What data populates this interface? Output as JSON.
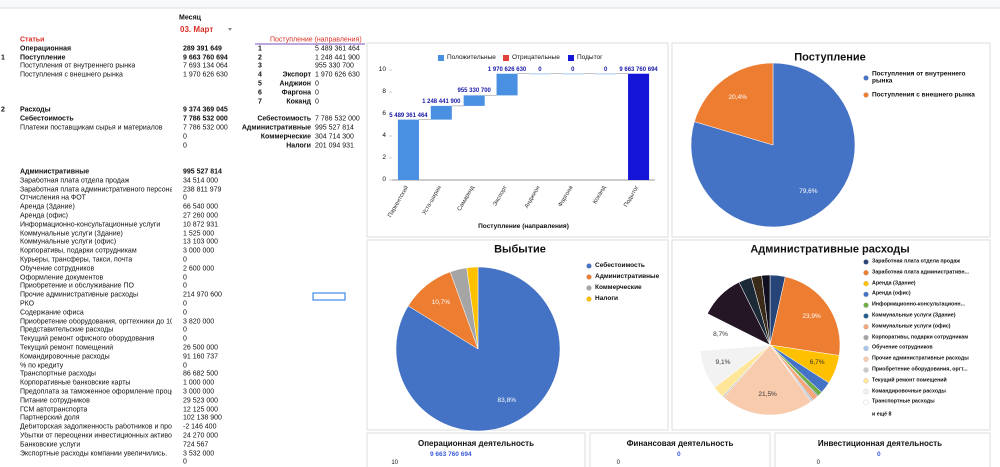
{
  "header": {
    "month_label": "Месяц",
    "month": "03. Март"
  },
  "left_table": {
    "header": "Статьи",
    "sections": [
      {
        "rows": [
          {
            "label": "Операционная",
            "value": "289 391 649",
            "bold": true
          },
          {
            "num": "1",
            "label": "Поступление",
            "value": "9 663 760 694",
            "bold": true
          },
          {
            "label": "Поступления от внутреннего рынка",
            "value": "7 693 134 064"
          },
          {
            "label": "Поступления с внешнего рынка",
            "value": "1 970 626 630"
          }
        ]
      },
      {
        "rows": [
          {
            "num": "2",
            "label": "Расходы",
            "value": "9 374 369 045",
            "bold": true
          },
          {
            "label": "Себестоимость",
            "value": "7 786 532 000",
            "bold": true
          },
          {
            "label": "Платежи поставщикам сырья и материалов",
            "value": "7 786 532 000"
          },
          {
            "value": "0"
          },
          {
            "value": "0"
          }
        ]
      },
      {
        "rows": [
          {
            "label": "Административные",
            "value": "995 527 814",
            "bold": true
          },
          {
            "label": "Заработная плата отдела продаж",
            "value": "34 514 000"
          },
          {
            "label": "Заработная плата административного персонал",
            "value": "238 811 979"
          },
          {
            "label": "Отчисления на ФОТ",
            "value": "0"
          },
          {
            "label": "Аренда (Здание)",
            "value": "66 540 000"
          },
          {
            "label": "Аренда (офис)",
            "value": "27 260 000"
          },
          {
            "label": "Информационно-консультационные услуги",
            "value": "10 872 931"
          },
          {
            "label": "Коммунальные услуги (Здание)",
            "value": "1 525 000"
          },
          {
            "label": "Коммунальные услуги (офис)",
            "value": "13 103 000"
          },
          {
            "label": "Корпоративы, подарки сотрудникам",
            "value": "3 000 000"
          },
          {
            "label": "Курьеры, трансферы, такси, почта",
            "value": "0"
          },
          {
            "label": "Обучение сотрудников",
            "value": "2 600 000"
          },
          {
            "label": "Оформление документов",
            "value": "0"
          },
          {
            "label": "Приобретение и обслуживание ПО",
            "value": "0"
          },
          {
            "label": "Прочие административные расходы",
            "value": "214 970 600"
          },
          {
            "label": "РКО",
            "value": "0"
          },
          {
            "label": "Содержание офиса",
            "value": "0"
          },
          {
            "label": "Приобретение оборудования, оргтехники до 10 т",
            "value": "3 820 000"
          },
          {
            "label": "Представительские расходы",
            "value": "0"
          },
          {
            "label": "Текущий ремонт офисного оборудования",
            "value": "0"
          },
          {
            "label": "Текущий ремонт помещений",
            "value": "26 500 000"
          },
          {
            "label": "Командировочные расходы",
            "value": "91 160 737"
          },
          {
            "label": "% по кредиту",
            "value": "0"
          },
          {
            "label": "Транспортные расходы",
            "value": "86 682 500"
          },
          {
            "label": "Корпоративные банковские карты",
            "value": "1 000 000"
          },
          {
            "label": "Предоплата за таможенное оформление процед",
            "value": "3 000 000"
          },
          {
            "label": "Питание сотрудников",
            "value": "29 523 000"
          },
          {
            "label": "ГСМ автотранспорта",
            "value": "12 125 000"
          },
          {
            "label": "Партнерский доля",
            "value": "102 138 900"
          },
          {
            "label": "Дебиторская задолженность работников и проч",
            "value": "-2 146 400"
          },
          {
            "label": "Убытки от переоценки инвестиционных активов",
            "value": "24 270 000"
          },
          {
            "label": "Банковские услуги",
            "value": "724 567"
          },
          {
            "label": "Экспортные расходы компании увеличились.",
            "value": "3 532 000"
          },
          {
            "value": "0"
          }
        ]
      }
    ]
  },
  "mid_table": {
    "header": "Поступление (направления)",
    "rows": [
      {
        "num": "1",
        "value": "5 489 361 464"
      },
      {
        "num": "2",
        "value": "1 248 441 900"
      },
      {
        "num": "3",
        "value": "955 330 700"
      },
      {
        "num": "4",
        "label": "Экспорт",
        "value": "1 970 626 630"
      },
      {
        "num": "5",
        "label": "Анджион",
        "value": "0"
      },
      {
        "num": "6",
        "label": "Фаргона",
        "value": "0"
      },
      {
        "num": "7",
        "label": "Коканд",
        "value": "0"
      }
    ],
    "totals": [
      {
        "label": "Себестоимость",
        "value": "7 786 532 000"
      },
      {
        "label": "Административные",
        "value": "995 527 814"
      },
      {
        "label": "Коммерческие",
        "value": "304 714 300"
      },
      {
        "label": "Налоги",
        "value": "201 094 931"
      }
    ]
  },
  "chart_data": [
    {
      "type": "waterfall",
      "x_label": "Поступление (направления)",
      "categories": [
        "Паркентский",
        "Уста-ширин",
        "Самаркнд",
        "Экспорт",
        "Анджион",
        "Фаргона",
        "Коканд",
        "Подытог"
      ],
      "values": [
        5.489361464,
        1.2484419,
        0.9553307,
        1.97062663,
        0,
        0,
        0,
        9.663760694
      ],
      "value_labels": [
        "5 489 361 464",
        "1 248 441 900",
        "955 330 700",
        "1 970 626 630",
        "0",
        "0",
        "0",
        "9 663 760 694"
      ],
      "is_subtotal": [
        false,
        false,
        false,
        false,
        false,
        false,
        false,
        true
      ],
      "series": [
        {
          "name": "Положительные",
          "color": "#4a90e2"
        },
        {
          "name": "Отрицательные",
          "color": "#e0433a"
        },
        {
          "name": "Подытог",
          "color": "#1515d8"
        }
      ],
      "ylim": [
        0,
        10
      ],
      "yticks": [
        0,
        2,
        4,
        6,
        8,
        10
      ],
      "grid": false
    },
    {
      "type": "pie",
      "title": "Поступление",
      "categories": [
        "Поступления от внутреннего рынка",
        "Поступления с внешнего рынка"
      ],
      "values": [
        79.6,
        20.4
      ],
      "value_labels": [
        "79,6%",
        "20,4%"
      ],
      "colors": [
        "#4472c4",
        "#ed7d31"
      ],
      "legend": "right"
    },
    {
      "type": "pie",
      "title": "Выбытие",
      "categories": [
        "Себестоимость",
        "Административные",
        "Коммерческие",
        "Налоги"
      ],
      "values": [
        83.8,
        10.7,
        3.3,
        2.2
      ],
      "value_labels": [
        "83,8%",
        "10,7%",
        null,
        null
      ],
      "colors": [
        "#4472c4",
        "#ed7d31",
        "#a5a5a5",
        "#ffc000"
      ],
      "legend": "right"
    },
    {
      "type": "pie",
      "title": "Административные расходы",
      "categories": [
        "Заработная плата отдела продаж",
        "Заработная плата административн...",
        "Аренда (Здание)",
        "Аренда (офис)",
        "Информационно-консультационн...",
        "Коммунальные услуги (Здание)",
        "Коммунальные услуги (офис)",
        "Корпоративы, подарки сотрудникам",
        "Обучение сотрудников",
        "Прочие административные расходы",
        "Приобретение оборудования, оргт...",
        "Текущий ремонт помещений",
        "Командировочные расходы",
        "Транспортные расходы",
        null,
        null,
        null,
        null
      ],
      "values": [
        3.5,
        23.9,
        6.7,
        2.7,
        1.1,
        0.2,
        1.3,
        0.3,
        0.3,
        21.5,
        0.4,
        2.7,
        9.1,
        8.7,
        10.3,
        3.0,
        2.4,
        1.9
      ],
      "value_labels": [
        null,
        "23,9%",
        "6,7%",
        null,
        null,
        null,
        null,
        null,
        null,
        "21,5%",
        null,
        null,
        "9,1%",
        "8,7%",
        null,
        null,
        null,
        null
      ],
      "colors": [
        "#264478",
        "#ed7d31",
        "#ffc000",
        "#4472c4",
        "#70ad47",
        "#255e91",
        "#f4a77a",
        "#a5a5a5",
        "#a9c4eb",
        "#f8cbad",
        "#c9c9c9",
        "#ffe699",
        "#f2f2f2",
        "#ffffff",
        "#241624",
        "#1c2a38",
        "#3a2a1a",
        "#0f0f1f"
      ],
      "legend_more": "и ещё 8",
      "legend": "right"
    }
  ],
  "bottom_panels": [
    {
      "title": "Операционная деятельность",
      "tick": "10",
      "value": "9 663 760 694"
    },
    {
      "title": "Финансовая деятельность",
      "tick": "0",
      "value": "0"
    },
    {
      "title": "Инвестиционная деятельность",
      "tick": "0",
      "value": "0"
    }
  ]
}
